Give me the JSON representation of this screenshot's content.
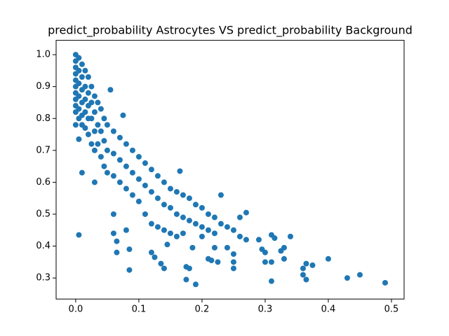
{
  "chart_data": {
    "type": "scatter",
    "title": "predict_probability Astrocytes VS predict_probability Background",
    "color": "#1f77b4",
    "xlim": [
      -0.031,
      0.52
    ],
    "ylim": [
      0.234,
      1.045
    ],
    "xticks": [
      {
        "value": 0,
        "label": "0.0"
      },
      {
        "value": 0.1,
        "label": "0.1"
      },
      {
        "value": 0.2,
        "label": "0.2"
      },
      {
        "value": 0.3,
        "label": "0.3"
      },
      {
        "value": 0.4,
        "label": "0.4"
      },
      {
        "value": 0.5,
        "label": "0.5"
      }
    ],
    "yticks": [
      {
        "value": 0.3,
        "label": "0.3"
      },
      0.4,
      0.5,
      0.6,
      0.7,
      0.8,
      0.9,
      {
        "value": 1,
        "label": "1.0"
      }
    ],
    "x": [
      0,
      0,
      0,
      0,
      0,
      0,
      0,
      0,
      0,
      0,
      0,
      0.005,
      0.005,
      0.005,
      0.005,
      0.005,
      0.005,
      0.01,
      0.01,
      0.01,
      0.01,
      0.01,
      0.01,
      0.015,
      0.015,
      0.015,
      0.015,
      0.015,
      0.02,
      0.02,
      0.02,
      0.02,
      0.02,
      0.025,
      0.025,
      0.025,
      0.025,
      0.03,
      0.03,
      0.03,
      0.03,
      0.035,
      0.035,
      0.035,
      0.04,
      0.04,
      0.04,
      0.045,
      0.045,
      0.045,
      0.05,
      0.05,
      0.05,
      0.06,
      0.06,
      0.06,
      0.07,
      0.07,
      0.07,
      0.08,
      0.08,
      0.08,
      0.09,
      0.09,
      0.09,
      0.1,
      0.1,
      0.1,
      0.11,
      0.11,
      0.11,
      0.12,
      0.12,
      0.12,
      0.13,
      0.13,
      0.13,
      0.14,
      0.14,
      0.14,
      0.15,
      0.15,
      0.15,
      0.16,
      0.16,
      0.16,
      0.17,
      0.17,
      0.17,
      0.18,
      0.18,
      0.19,
      0.19,
      0.2,
      0.2,
      0.21,
      0.21,
      0.22,
      0.22,
      0.23,
      0.24,
      0.25,
      0.26,
      0.005,
      0.01,
      0.005,
      0.03,
      0.055,
      0.06,
      0.06,
      0.065,
      0.065,
      0.075,
      0.085,
      0.085,
      0.08,
      0.12,
      0.125,
      0.135,
      0.14,
      0.145,
      0.165,
      0.175,
      0.175,
      0.18,
      0.185,
      0.19,
      0.2,
      0.21,
      0.215,
      0.22,
      0.225,
      0.23,
      0.24,
      0.25,
      0.25,
      0.25,
      0.26,
      0.27,
      0.27,
      0.29,
      0.295,
      0.3,
      0.3,
      0.31,
      0.31,
      0.31,
      0.315,
      0.325,
      0.33,
      0.33,
      0.34,
      0.36,
      0.36,
      0.365,
      0.365,
      0.375,
      0.4,
      0.43,
      0.45,
      0.49
    ],
    "values": [
      1.0,
      0.98,
      0.96,
      0.94,
      0.92,
      0.9,
      0.88,
      0.86,
      0.84,
      0.82,
      0.78,
      0.99,
      0.95,
      0.91,
      0.87,
      0.83,
      0.8,
      0.97,
      0.93,
      0.89,
      0.85,
      0.81,
      0.78,
      0.95,
      0.9,
      0.86,
      0.82,
      0.77,
      0.93,
      0.88,
      0.84,
      0.8,
      0.75,
      0.9,
      0.85,
      0.8,
      0.72,
      0.87,
      0.82,
      0.76,
      0.7,
      0.85,
      0.78,
      0.72,
      0.83,
      0.76,
      0.68,
      0.8,
      0.73,
      0.65,
      0.78,
      0.7,
      0.63,
      0.76,
      0.69,
      0.62,
      0.74,
      0.67,
      0.6,
      0.72,
      0.65,
      0.58,
      0.7,
      0.63,
      0.56,
      0.68,
      0.61,
      0.54,
      0.66,
      0.59,
      0.5,
      0.64,
      0.57,
      0.47,
      0.62,
      0.55,
      0.46,
      0.6,
      0.53,
      0.45,
      0.58,
      0.52,
      0.44,
      0.57,
      0.5,
      0.43,
      0.56,
      0.49,
      0.44,
      0.55,
      0.48,
      0.53,
      0.47,
      0.52,
      0.46,
      0.5,
      0.45,
      0.49,
      0.44,
      0.47,
      0.46,
      0.45,
      0.49,
      0.435,
      0.63,
      0.735,
      0.6,
      0.89,
      0.5,
      0.44,
      0.415,
      0.38,
      0.81,
      0.39,
      0.325,
      0.45,
      0.38,
      0.365,
      0.345,
      0.33,
      0.405,
      0.635,
      0.295,
      0.335,
      0.33,
      0.395,
      0.28,
      0.43,
      0.36,
      0.355,
      0.395,
      0.35,
      0.56,
      0.395,
      0.375,
      0.33,
      0.35,
      0.43,
      0.505,
      0.42,
      0.42,
      0.39,
      0.38,
      0.35,
      0.35,
      0.435,
      0.29,
      0.425,
      0.385,
      0.395,
      0.36,
      0.43,
      0.33,
      0.31,
      0.345,
      0.295,
      0.34,
      0.36,
      0.3,
      0.31,
      0.285
    ]
  }
}
